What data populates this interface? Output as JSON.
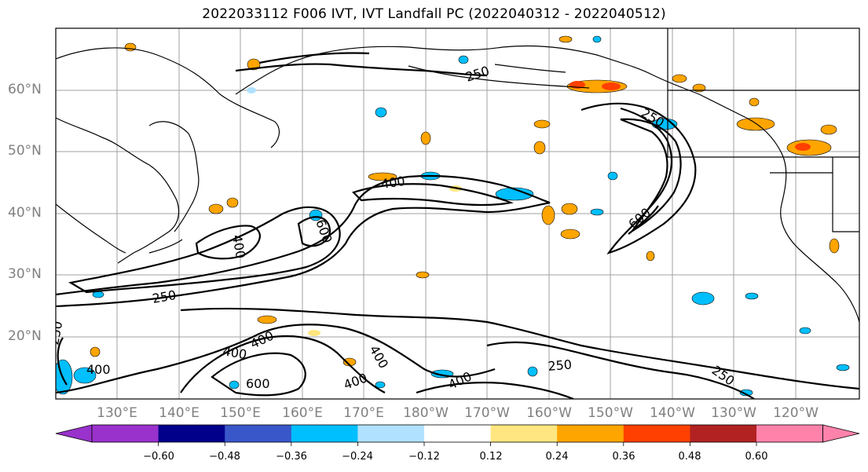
{
  "title": "2022033112 F006 IVT, IVT Landfall PC (2022040312 - 2022040512)",
  "map": {
    "lat_labels": [
      "60°N",
      "50°N",
      "40°N",
      "30°N",
      "20°N"
    ],
    "lon_labels": [
      "130°E",
      "140°E",
      "150°E",
      "160°E",
      "170°E",
      "180°W",
      "170°W",
      "160°W",
      "150°W",
      "140°W",
      "130°W",
      "120°W"
    ],
    "contour_labels": [
      "250",
      "250",
      "400",
      "400",
      "600",
      "600",
      "250",
      "250",
      "400",
      "400",
      "400",
      "400",
      "400",
      "600",
      "250",
      "250",
      "400"
    ]
  },
  "colorbar": {
    "tick_labels": [
      "−0.60",
      "−0.48",
      "−0.36",
      "−0.24",
      "−0.12",
      "0.12",
      "0.24",
      "0.36",
      "0.48",
      "0.60"
    ],
    "colors": [
      "#9932cc",
      "#00008b",
      "#3a57c9",
      "#00bfff",
      "#b0e2ff",
      "#ffffff",
      "#ffe680",
      "#ffa500",
      "#ff4000",
      "#b22222",
      "#ff82ab"
    ]
  },
  "colors": {
    "contour": "#000000",
    "grid": "#a0a0a0",
    "coast": "#000000"
  }
}
